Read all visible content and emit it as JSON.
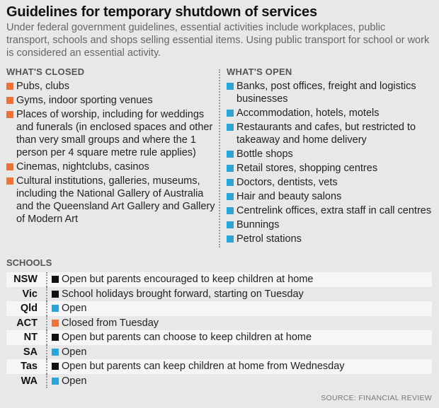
{
  "title": "Guidelines for temporary shutdown of services",
  "intro": "Under federal government guidelines, essential activities include workplaces, public transport, schools and shops selling essential items. Using public transport for school or work is considered an essential activity.",
  "closed": {
    "heading": "WHAT'S CLOSED",
    "items": [
      "Pubs, clubs",
      "Gyms, indoor sporting venues",
      "Places of worship, including for weddings and funerals (in enclosed spaces and other than very small groups and where the 1 person per 4 square metre rule applies)",
      "Cinemas, nightclubs, casinos",
      "Cultural institutions, galleries, museums, including the National Gallery of Australia and the Queensland Art Gallery and Gallery of Modern Art"
    ]
  },
  "open": {
    "heading": "WHAT'S OPEN",
    "items": [
      "Banks, post offices, freight and logistics businesses",
      "Accommodation, hotels, motels",
      "Restaurants and cafes, but restricted to takeaway and home delivery",
      "Bottle shops",
      "Retail stores, shopping centres",
      "Doctors, dentists, vets",
      "Hair and beauty salons",
      "Centrelink offices, extra staff in call centres",
      "Bunnings",
      "Petrol stations"
    ]
  },
  "schools": {
    "heading": "SCHOOLS",
    "rows": [
      {
        "state": "NSW",
        "status": "Open but parents encouraged to keep children at home",
        "color": "#111111"
      },
      {
        "state": "Vic",
        "status": "School holidays brought forward, starting on Tuesday",
        "color": "#111111"
      },
      {
        "state": "Qld",
        "status": "Open",
        "color": "#2ea3d6"
      },
      {
        "state": "ACT",
        "status": "Closed from Tuesday",
        "color": "#e8743b"
      },
      {
        "state": "NT",
        "status": "Open but parents can choose to keep children at home",
        "color": "#111111"
      },
      {
        "state": "SA",
        "status": "Open",
        "color": "#2ea3d6"
      },
      {
        "state": "Tas",
        "status": "Open but parents can keep children at home from Wednesday",
        "color": "#111111"
      },
      {
        "state": "WA",
        "status": "Open",
        "color": "#2ea3d6"
      }
    ]
  },
  "colors": {
    "closed": "#e8743b",
    "open": "#2ea3d6",
    "background": "#e8e8e8"
  },
  "source": "SOURCE: FINANCIAL REVIEW"
}
